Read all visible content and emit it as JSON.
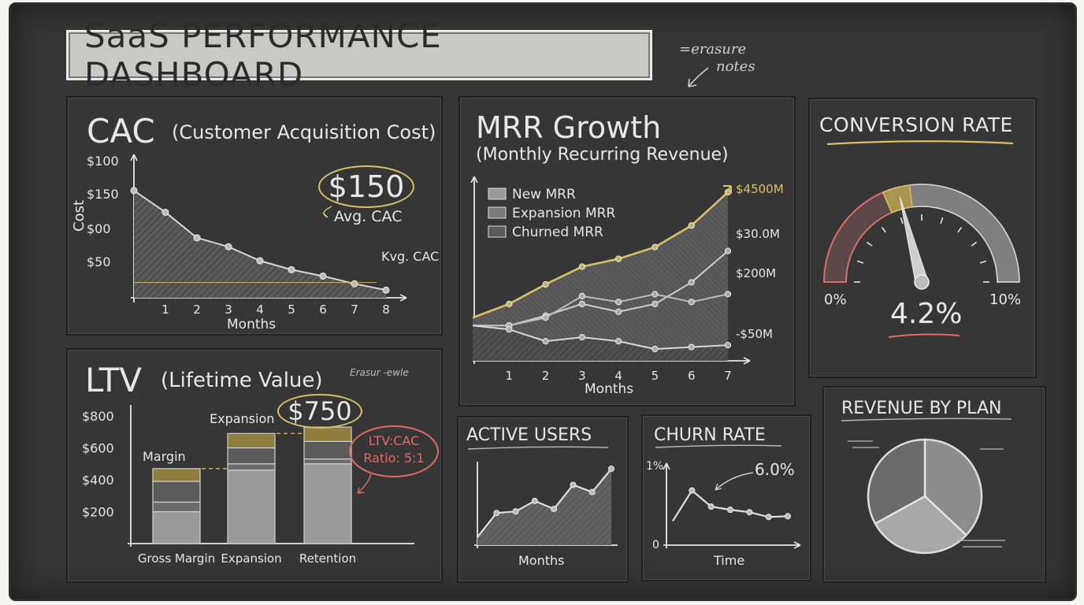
{
  "dashboard": {
    "title": "SaaS PERFORMANCE DASHBOARD",
    "note_line1": "=erasure",
    "note_line2": "notes"
  },
  "cac": {
    "title": "CAC",
    "subtitle": "(Customer Acquisition Cost)",
    "avg_value": "$150",
    "avg_label": "Avg. CAC",
    "ref_label": "Kvg. CAC",
    "ylabel": "Cost",
    "xlabel": "Months"
  },
  "ltv": {
    "title": "LTV",
    "subtitle": "(Lifetime Value)",
    "scribble": "Erasur -ewle",
    "callout_value": "$750",
    "margin_label": "Margin",
    "expansion_label": "Expansion",
    "ratio_line1": "LTV:CAC",
    "ratio_line2": "Ratio: 5:1"
  },
  "mrr": {
    "title": "MRR Growth",
    "subtitle": "(Monthly Recurring Revenue)",
    "xlabel": "Months",
    "legend": [
      "New MRR",
      "Expansion MRR",
      "Churned MRR"
    ]
  },
  "conversion": {
    "title": "CONVERSION RATE",
    "value": "4.2%",
    "min_label": "0%",
    "max_label": "10%",
    "value_num": 4.2,
    "max_num": 10
  },
  "active_users": {
    "title": "ACTIVE USERS",
    "xlabel": "Months"
  },
  "churn": {
    "title": "CHURN RATE",
    "callout": "6.0%",
    "y_top": "1%",
    "y_zero": "0",
    "xlabel": "Time"
  },
  "revenue_plan": {
    "title": "REVENUE BY PLAN"
  },
  "colors": {
    "chalk": "#e6e6e6",
    "yellow": "#d8c06a",
    "red": "#e06a64",
    "board": "#353535"
  },
  "chart_data": [
    {
      "type": "area",
      "id": "cac",
      "x": [
        0,
        1,
        2,
        3,
        4,
        5,
        6,
        7,
        8
      ],
      "values": [
        84,
        67,
        47,
        40,
        29,
        22,
        17,
        11,
        6
      ],
      "reference_line": 12,
      "yticks": [
        "$100",
        "$150",
        "$00",
        "$50"
      ],
      "xticks": [
        "1",
        "2",
        "3",
        "4",
        "5",
        "6",
        "7",
        "8"
      ],
      "title": "CAC (Customer Acquisition Cost)",
      "xlabel": "Months",
      "ylabel": "Cost"
    },
    {
      "type": "bar",
      "id": "ltv",
      "categories": [
        "Gross Margin",
        "Expansion",
        "Retention"
      ],
      "stacks": [
        [
          200,
          60,
          130,
          80
        ],
        [
          460,
          40,
          100,
          90
        ],
        [
          500,
          30,
          110,
          90
        ]
      ],
      "yticks": [
        "$800",
        "$600",
        "$400",
        "$200"
      ],
      "ytick_values": [
        800,
        600,
        400,
        200
      ],
      "title": "LTV (Lifetime Value)"
    },
    {
      "type": "line",
      "id": "mrr",
      "x": [
        0,
        1,
        2,
        3,
        4,
        5,
        6,
        7
      ],
      "xticks": [
        "1",
        "2",
        "3",
        "4",
        "5",
        "6",
        "7"
      ],
      "series": [
        {
          "name": "New MRR",
          "values": [
            0.2,
            0.9,
            1.9,
            2.8,
            3.2,
            3.8,
            4.9,
            6.6
          ]
        },
        {
          "name": "Expansion MRR",
          "values": [
            -0.2,
            -0.2,
            0.3,
            0.9,
            0.5,
            0.9,
            2.0,
            3.6
          ]
        },
        {
          "name": "Churned MRR",
          "values": [
            -0.2,
            -0.2,
            0.2,
            1.3,
            1.0,
            1.4,
            1.0,
            1.4
          ]
        },
        {
          "name": "",
          "values": [
            -0.2,
            -0.4,
            -1.0,
            -0.8,
            -1.0,
            -1.4,
            -1.3,
            -1.2
          ]
        }
      ],
      "right_labels": [
        "$4500M",
        "$30.0M",
        "$200M",
        "-$50M"
      ],
      "right_label_values": [
        6.8,
        4.5,
        2.5,
        -0.6
      ],
      "title": "MRR Growth (Monthly Recurring Revenue)",
      "xlabel": "Months"
    },
    {
      "type": "line",
      "id": "active_users",
      "x": [
        0,
        1,
        2,
        3,
        4,
        5,
        6,
        7
      ],
      "values": [
        1.0,
        4.0,
        4.2,
        5.5,
        4.5,
        7.5,
        6.6,
        9.5
      ],
      "xlabel": "Months"
    },
    {
      "type": "line",
      "id": "churn",
      "x": [
        0,
        1,
        2,
        3,
        4,
        5,
        6
      ],
      "values": [
        0.3,
        0.68,
        0.48,
        0.44,
        0.41,
        0.35,
        0.36
      ],
      "xlabel": "Time"
    },
    {
      "type": "pie",
      "id": "revenue_plan",
      "values": [
        37,
        30,
        33
      ],
      "title": "REVENUE BY PLAN"
    }
  ]
}
